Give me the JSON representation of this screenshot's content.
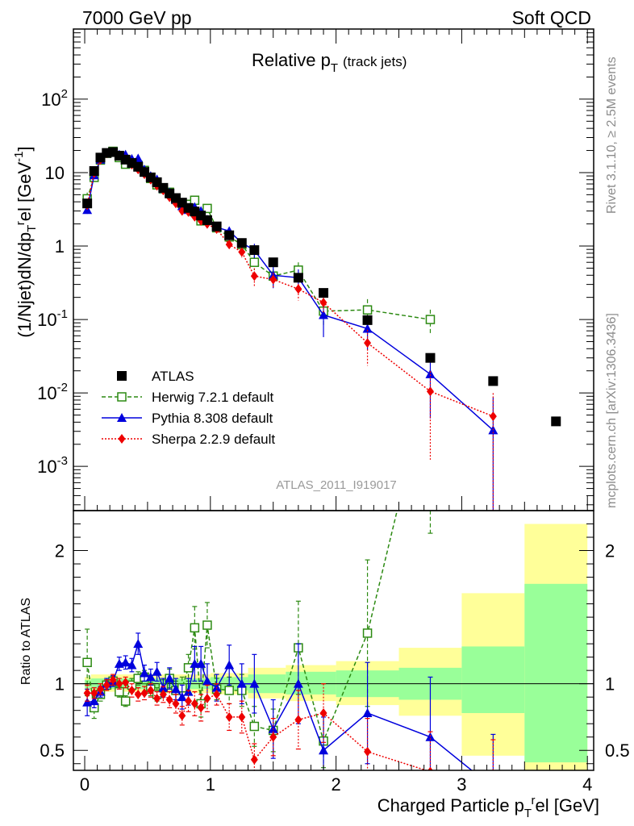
{
  "header": {
    "left": "7000 GeV pp",
    "right": "Soft QCD"
  },
  "plot_title": {
    "main": "Relative p",
    "sub": "T",
    "suffix": "(track jets)"
  },
  "analysis_id": "ATLAS_2011_I919017",
  "side_notes": {
    "top": "Rivet 3.1.10, ≥ 2.5M events",
    "bottom": "mcplots.cern.ch [arXiv:1306.3436]"
  },
  "ylabel_main": "(1/Njet)dN/dp",
  "ylabel_main_sub": "T",
  "ylabel_main_sup": "r",
  "ylabel_main_tail": "el [GeV",
  "ylabel_main_exp": "-1",
  "ylabel_main_close": "]",
  "ylabel_ratio": "Ratio to ATLAS",
  "xlabel_main": "Charged Particle p",
  "xlabel_sub": "T",
  "xlabel_sup": "r",
  "xlabel_tail": "el [GeV]",
  "colors": {
    "atlas": "#000000",
    "herwig": "#2c8a12",
    "pythia": "#0000dd",
    "sherpa": "#ee0000",
    "band_inner": "#99ff99",
    "band_outer": "#ffff99"
  },
  "chart_data": {
    "type": "scatter",
    "x_range": [
      -0.09,
      4.05
    ],
    "main": {
      "y_scale": "log",
      "y_range": [
        0.00025,
        900
      ],
      "y_ticks": [
        {
          "value": 0.001,
          "base": "10",
          "exp": "-3"
        },
        {
          "value": 0.01,
          "base": "10",
          "exp": "-2"
        },
        {
          "value": 0.1,
          "base": "10",
          "exp": "-1"
        },
        {
          "value": 1,
          "base": "1",
          "exp": ""
        },
        {
          "value": 10,
          "base": "10",
          "exp": ""
        },
        {
          "value": 100,
          "base": "10",
          "exp": "2"
        }
      ]
    },
    "ratio": {
      "y_range": [
        0.35,
        2.3
      ],
      "y_ticks": [
        0.5,
        1,
        2
      ],
      "y_tick_labels": [
        "0.5",
        "1",
        "2"
      ],
      "band": [
        {
          "x0": 0.0,
          "x1": 0.05,
          "inner": [
            0.97,
            1.03
          ],
          "outer": [
            0.95,
            1.05
          ]
        },
        {
          "x0": 0.05,
          "x1": 0.5,
          "inner": [
            0.96,
            1.04
          ],
          "outer": [
            0.94,
            1.07
          ]
        },
        {
          "x0": 0.5,
          "x1": 1.0,
          "inner": [
            0.96,
            1.04
          ],
          "outer": [
            0.93,
            1.07
          ]
        },
        {
          "x0": 1.0,
          "x1": 1.3,
          "inner": [
            0.95,
            1.05
          ],
          "outer": [
            0.92,
            1.08
          ]
        },
        {
          "x0": 1.3,
          "x1": 1.6,
          "inner": [
            0.93,
            1.07
          ],
          "outer": [
            0.89,
            1.12
          ]
        },
        {
          "x0": 1.6,
          "x1": 2.0,
          "inner": [
            0.92,
            1.09
          ],
          "outer": [
            0.87,
            1.14
          ]
        },
        {
          "x0": 2.0,
          "x1": 2.5,
          "inner": [
            0.9,
            1.1
          ],
          "outer": [
            0.84,
            1.17
          ]
        },
        {
          "x0": 2.5,
          "x1": 3.0,
          "inner": [
            0.88,
            1.12
          ],
          "outer": [
            0.76,
            1.27
          ]
        },
        {
          "x0": 3.0,
          "x1": 3.5,
          "inner": [
            0.78,
            1.28
          ],
          "outer": [
            0.46,
            1.68
          ]
        },
        {
          "x0": 3.5,
          "x1": 4.0,
          "inner": [
            0.41,
            1.75
          ],
          "outer": [
            0.35,
            2.2
          ]
        }
      ]
    },
    "x_ticks": [
      0,
      1,
      2,
      3,
      4
    ],
    "x_tick_labels": [
      "0",
      "1",
      "2",
      "3",
      "4"
    ],
    "legend": {
      "position": "bottom-left",
      "entries": [
        {
          "key": "atlas",
          "label": "ATLAS"
        },
        {
          "key": "herwig",
          "label": "Herwig 7.2.1 default"
        },
        {
          "key": "pythia",
          "label": "Pythia 8.308 default"
        },
        {
          "key": "sherpa",
          "label": "Sherpa 2.2.9 default"
        }
      ]
    },
    "series": [
      {
        "key": "atlas",
        "marker": "square",
        "line": "none",
        "x": [
          0.02,
          0.075,
          0.125,
          0.175,
          0.225,
          0.275,
          0.325,
          0.375,
          0.425,
          0.475,
          0.525,
          0.575,
          0.625,
          0.675,
          0.725,
          0.775,
          0.825,
          0.875,
          0.925,
          0.975,
          1.05,
          1.15,
          1.25,
          1.35,
          1.5,
          1.7,
          1.9,
          2.25,
          2.75,
          3.25,
          3.75
        ],
        "y": [
          3.8,
          10.5,
          16.0,
          18.5,
          19.0,
          17.0,
          15.0,
          13.5,
          12.0,
          10.2,
          8.6,
          7.4,
          6.2,
          5.2,
          4.5,
          3.9,
          3.3,
          2.95,
          2.6,
          2.25,
          1.85,
          1.4,
          1.1,
          0.88,
          0.6,
          0.37,
          0.23,
          0.098,
          0.03,
          0.0145,
          0.0041
        ]
      },
      {
        "key": "herwig",
        "marker": "open-square",
        "line": "dashed",
        "x": [
          0.02,
          0.075,
          0.125,
          0.175,
          0.225,
          0.275,
          0.325,
          0.375,
          0.425,
          0.475,
          0.525,
          0.575,
          0.625,
          0.675,
          0.725,
          0.775,
          0.825,
          0.875,
          0.925,
          0.975,
          1.05,
          1.15,
          1.25,
          1.35,
          1.5,
          1.7,
          1.9,
          2.25,
          2.75
        ],
        "y": [
          4.4,
          8.6,
          14.8,
          18.3,
          19.5,
          16.0,
          13.0,
          13.4,
          12.5,
          10.7,
          8.3,
          6.8,
          6.0,
          5.4,
          4.3,
          3.8,
          3.7,
          4.2,
          2.2,
          3.25,
          1.77,
          1.33,
          1.05,
          0.6,
          0.39,
          0.47,
          0.13,
          0.135,
          0.1
        ],
        "ratio": [
          1.16,
          0.82,
          0.92,
          0.99,
          1.02,
          0.94,
          0.87,
          0.99,
          1.04,
          1.05,
          0.96,
          0.92,
          0.97,
          1.04,
          0.95,
          0.97,
          1.12,
          1.42,
          0.85,
          1.44,
          0.96,
          0.95,
          0.95,
          0.68,
          0.65,
          1.27,
          0.57,
          1.38,
          3.33
        ],
        "ratio_err": [
          0.25,
          0.08,
          0.05,
          0.04,
          0.04,
          0.04,
          0.04,
          0.05,
          0.05,
          0.05,
          0.05,
          0.05,
          0.06,
          0.07,
          0.07,
          0.08,
          0.1,
          0.16,
          0.1,
          0.17,
          0.08,
          0.1,
          0.12,
          0.15,
          0.16,
          0.35,
          0.2,
          0.55,
          1.2
        ]
      },
      {
        "key": "pythia",
        "marker": "triangle",
        "line": "solid",
        "x": [
          0.02,
          0.075,
          0.125,
          0.175,
          0.225,
          0.275,
          0.325,
          0.375,
          0.425,
          0.475,
          0.525,
          0.575,
          0.625,
          0.675,
          0.725,
          0.775,
          0.825,
          0.875,
          0.925,
          0.975,
          1.05,
          1.15,
          1.25,
          1.35,
          1.5,
          1.7,
          1.9,
          2.25,
          2.75,
          3.25
        ],
        "y": [
          3.1,
          9.2,
          15.0,
          18.5,
          19.3,
          17.6,
          17.6,
          15.4,
          15.6,
          11.0,
          9.0,
          8.1,
          6.0,
          5.4,
          4.3,
          3.5,
          3.1,
          3.4,
          3.0,
          2.3,
          1.8,
          1.6,
          1.1,
          0.88,
          0.4,
          0.37,
          0.115,
          0.075,
          0.018,
          0.0031
        ],
        "ratio": [
          0.86,
          0.87,
          0.94,
          1.0,
          1.02,
          1.15,
          1.16,
          1.14,
          1.3,
          1.08,
          1.05,
          1.09,
          0.97,
          1.04,
          0.96,
          0.9,
          0.94,
          1.15,
          1.15,
          1.02,
          0.97,
          1.14,
          1.0,
          1.0,
          0.66,
          1.0,
          0.5,
          0.78,
          0.6,
          0.22
        ],
        "ratio_err": [
          0.1,
          0.05,
          0.04,
          0.04,
          0.04,
          0.05,
          0.05,
          0.05,
          0.08,
          0.06,
          0.06,
          0.07,
          0.07,
          0.08,
          0.08,
          0.09,
          0.1,
          0.13,
          0.13,
          0.13,
          0.1,
          0.15,
          0.15,
          0.22,
          0.22,
          0.3,
          0.25,
          0.38,
          0.45,
          0.4
        ]
      },
      {
        "key": "sherpa",
        "marker": "diamond",
        "line": "dotted",
        "x": [
          0.02,
          0.075,
          0.125,
          0.175,
          0.225,
          0.275,
          0.325,
          0.375,
          0.425,
          0.475,
          0.525,
          0.575,
          0.625,
          0.675,
          0.725,
          0.775,
          0.825,
          0.875,
          0.925,
          0.975,
          1.05,
          1.15,
          1.25,
          1.35,
          1.5,
          1.7,
          1.9,
          2.25,
          2.75,
          3.25
        ],
        "y": [
          3.6,
          9.8,
          14.9,
          18.2,
          19.2,
          17.0,
          15.2,
          12.8,
          11.0,
          9.5,
          8.0,
          6.6,
          5.7,
          4.6,
          3.8,
          3.0,
          2.9,
          2.5,
          2.2,
          2.0,
          1.7,
          1.05,
          0.83,
          0.39,
          0.35,
          0.26,
          0.17,
          0.048,
          0.0105,
          0.0048
        ],
        "ratio": [
          0.93,
          0.93,
          0.96,
          0.99,
          1.03,
          1.0,
          1.01,
          0.95,
          0.92,
          0.93,
          0.95,
          0.89,
          0.92,
          0.88,
          0.85,
          0.76,
          0.87,
          0.85,
          0.82,
          0.89,
          0.92,
          0.75,
          0.75,
          0.43,
          0.6,
          0.73,
          0.78,
          0.49,
          0.34,
          0.28
        ],
        "ratio_err": [
          0.06,
          0.04,
          0.04,
          0.04,
          0.04,
          0.04,
          0.04,
          0.05,
          0.05,
          0.05,
          0.05,
          0.05,
          0.06,
          0.06,
          0.07,
          0.07,
          0.08,
          0.09,
          0.1,
          0.1,
          0.08,
          0.1,
          0.12,
          0.12,
          0.14,
          0.22,
          0.22,
          0.25,
          0.3,
          0.3
        ]
      }
    ]
  }
}
